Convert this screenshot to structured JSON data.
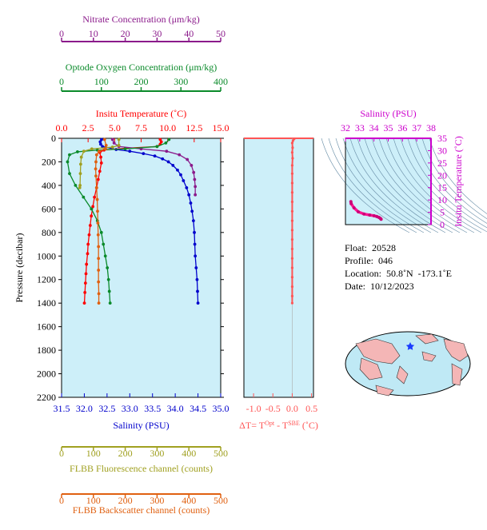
{
  "float_info": {
    "float": "Float:  20528",
    "profile": "Profile:  046",
    "location": "Location:  50.8˚N  -173.1˚E",
    "date": "Date:  10/12/2023"
  },
  "chart_data": [
    {
      "type": "line",
      "panel": "main_profile",
      "ylabel": "Pressure (decibar)",
      "yticks": [
        0,
        200,
        400,
        600,
        800,
        1000,
        1200,
        1400,
        1600,
        1800,
        2000,
        2200
      ],
      "ylim": [
        2200,
        0
      ],
      "axes": [
        {
          "key": "nitrate",
          "label": "Nitrate Concentration (μm/kg)",
          "ticks": [
            "0",
            "10",
            "20",
            "30",
            "40",
            "50"
          ],
          "range": [
            0,
            50
          ],
          "color": "#8b1a8b"
        },
        {
          "key": "oxygen",
          "label": "Optode Oxygen Concentration (μm/kg)",
          "ticks": [
            "0",
            "100",
            "200",
            "300",
            "400"
          ],
          "range": [
            0,
            400
          ],
          "color": "#0a8a2a"
        },
        {
          "key": "temperature",
          "label": "Insitu Temperature (˚C)",
          "ticks": [
            "0.0",
            "2.5",
            "5.0",
            "7.5",
            "10.0",
            "12.5",
            "15.0"
          ],
          "range": [
            0,
            15
          ],
          "color": "#ff0000"
        },
        {
          "key": "salinity",
          "label": "Salinity (PSU)",
          "ticks": [
            "31.5",
            "32.0",
            "32.5",
            "33.0",
            "33.5",
            "34.0",
            "34.5",
            "35.0"
          ],
          "range": [
            31.5,
            35
          ],
          "color": "#0000cc"
        },
        {
          "key": "fluorescence",
          "label": "FLBB Fluorescence channel (counts)",
          "ticks": [
            "0",
            "100",
            "200",
            "300",
            "400",
            "500"
          ],
          "range": [
            0,
            500
          ],
          "color": "#a0a020"
        },
        {
          "key": "backscatter",
          "label": "FLBB Backscatter channel (counts)",
          "ticks": [
            "0",
            "100",
            "200",
            "300",
            "400",
            "500"
          ],
          "range": [
            0,
            500
          ],
          "color": "#e06010"
        }
      ],
      "series": [
        {
          "key": "salinity",
          "color": "#0000cc",
          "points": [
            [
              32.38,
              10
            ],
            [
              32.35,
              30
            ],
            [
              32.36,
              50
            ],
            [
              32.4,
              70
            ],
            [
              32.7,
              95
            ],
            [
              33.0,
              110
            ],
            [
              33.3,
              130
            ],
            [
              33.55,
              150
            ],
            [
              33.72,
              175
            ],
            [
              33.85,
              200
            ],
            [
              33.95,
              230
            ],
            [
              34.05,
              270
            ],
            [
              34.12,
              310
            ],
            [
              34.18,
              360
            ],
            [
              34.25,
              420
            ],
            [
              34.3,
              480
            ],
            [
              34.34,
              550
            ],
            [
              34.37,
              620
            ],
            [
              34.4,
              700
            ],
            [
              34.42,
              800
            ],
            [
              34.43,
              900
            ],
            [
              34.44,
              1000
            ],
            [
              34.46,
              1100
            ],
            [
              34.48,
              1200
            ],
            [
              34.49,
              1300
            ],
            [
              34.5,
              1400
            ]
          ]
        },
        {
          "key": "temperature",
          "color": "#ff0000",
          "points": [
            [
              9.3,
              10
            ],
            [
              9.4,
              30
            ],
            [
              9.3,
              50
            ],
            [
              9.0,
              70
            ],
            [
              6.0,
              85
            ],
            [
              4.0,
              100
            ],
            [
              3.6,
              120
            ],
            [
              3.7,
              160
            ],
            [
              3.75,
              210
            ],
            [
              3.6,
              280
            ],
            [
              3.45,
              350
            ],
            [
              3.3,
              420
            ],
            [
              3.1,
              500
            ],
            [
              2.95,
              580
            ],
            [
              2.8,
              660
            ],
            [
              2.7,
              740
            ],
            [
              2.6,
              820
            ],
            [
              2.5,
              900
            ],
            [
              2.45,
              980
            ],
            [
              2.35,
              1070
            ],
            [
              2.3,
              1150
            ],
            [
              2.25,
              1230
            ],
            [
              2.2,
              1310
            ],
            [
              2.15,
              1400
            ]
          ]
        },
        {
          "key": "nitrate",
          "color": "#8b1a8b",
          "points": [
            [
              16.0,
              10
            ],
            [
              16.5,
              40
            ],
            [
              18.0,
              70
            ],
            [
              25.0,
              90
            ],
            [
              33.0,
              110
            ],
            [
              37.0,
              140
            ],
            [
              39.5,
              180
            ],
            [
              40.8,
              230
            ],
            [
              41.5,
              290
            ],
            [
              41.8,
              350
            ],
            [
              42.0,
              410
            ],
            [
              42.0,
              480
            ]
          ]
        },
        {
          "key": "oxygen",
          "color": "#0a8a2a",
          "points": [
            [
              270,
              10
            ],
            [
              262,
              40
            ],
            [
              240,
              70
            ],
            [
              160,
              90
            ],
            [
              90,
              100
            ],
            [
              40,
              115
            ],
            [
              20,
              140
            ],
            [
              15,
              200
            ],
            [
              20,
              300
            ],
            [
              35,
              400
            ],
            [
              55,
              500
            ],
            [
              75,
              600
            ],
            [
              90,
              700
            ],
            [
              100,
              800
            ],
            [
              105,
              900
            ],
            [
              110,
              1000
            ],
            [
              115,
              1100
            ],
            [
              118,
              1200
            ],
            [
              120,
              1300
            ],
            [
              122,
              1400
            ]
          ]
        },
        {
          "key": "fluorescence",
          "color": "#a0a020",
          "points": [
            [
              180,
              10
            ],
            [
              180,
              60
            ],
            [
              160,
              75
            ],
            [
              95,
              90
            ],
            [
              70,
              110
            ],
            [
              62,
              160
            ],
            [
              60,
              220
            ],
            [
              59,
              300
            ],
            [
              58,
              400
            ],
            [
              57,
              420
            ]
          ]
        },
        {
          "key": "backscatter",
          "color": "#e06010",
          "points": [
            [
              135,
              10
            ],
            [
              140,
              60
            ],
            [
              138,
              90
            ],
            [
              118,
              110
            ],
            [
              110,
              140
            ],
            [
              108,
              200
            ],
            [
              107,
              260
            ],
            [
              108,
              320
            ],
            [
              110,
              420
            ],
            [
              112,
              520
            ],
            [
              113,
              620
            ],
            [
              114,
              720
            ],
            [
              115,
              820
            ],
            [
              116,
              920
            ],
            [
              116,
              1020
            ],
            [
              116,
              1120
            ],
            [
              116,
              1220
            ],
            [
              117,
              1320
            ],
            [
              117,
              1400
            ]
          ]
        }
      ]
    },
    {
      "type": "line",
      "panel": "delta_t",
      "xlabel_parts": [
        "ΔT= T",
        "Opt",
        " - T",
        "SBE",
        " (˚C)"
      ],
      "xticks": [
        "-1.0",
        "-0.5",
        "0.0",
        "0.5"
      ],
      "xlim": [
        -1.25,
        0.55
      ],
      "ylim": [
        2200,
        0
      ],
      "series": [
        {
          "key": "dt",
          "color": "#ff5555",
          "points": [
            [
              0.05,
              5
            ],
            [
              0.02,
              20
            ],
            [
              0.0,
              40
            ],
            [
              0.01,
              80
            ],
            [
              0.0,
              120
            ],
            [
              0.01,
              170
            ],
            [
              0.0,
              230
            ],
            [
              0.0,
              300
            ],
            [
              0.0,
              380
            ],
            [
              0.0,
              460
            ],
            [
              0.0,
              540
            ],
            [
              0.0,
              620
            ],
            [
              0.0,
              700
            ],
            [
              0.0,
              780
            ],
            [
              0.0,
              860
            ],
            [
              0.0,
              940
            ],
            [
              0.0,
              1020
            ],
            [
              0.0,
              1100
            ],
            [
              0.0,
              1180
            ],
            [
              0.0,
              1260
            ],
            [
              0.0,
              1340
            ],
            [
              0.0,
              1400
            ]
          ]
        }
      ]
    },
    {
      "type": "scatter",
      "panel": "ts_diagram",
      "title": "Salinity (PSU)",
      "xticks": [
        "32",
        "33",
        "34",
        "35",
        "36",
        "37",
        "38"
      ],
      "xlim": [
        32,
        38
      ],
      "ylabel": "Insitu Temperature (˚C)",
      "yticks": [
        "0",
        "5",
        "10",
        "15",
        "20",
        "25",
        "30",
        "35"
      ],
      "ylim": [
        0,
        35
      ],
      "series": [
        {
          "key": "ts",
          "color": "#ff1493",
          "points": [
            [
              32.38,
              9.3
            ],
            [
              32.4,
              8.5
            ],
            [
              32.6,
              6.8
            ],
            [
              32.9,
              5.2
            ],
            [
              33.3,
              4.3
            ],
            [
              33.7,
              3.9
            ],
            [
              34.0,
              3.6
            ],
            [
              34.2,
              3.3
            ],
            [
              34.35,
              2.9
            ],
            [
              34.45,
              2.5
            ],
            [
              34.5,
              2.2
            ]
          ]
        }
      ]
    }
  ]
}
